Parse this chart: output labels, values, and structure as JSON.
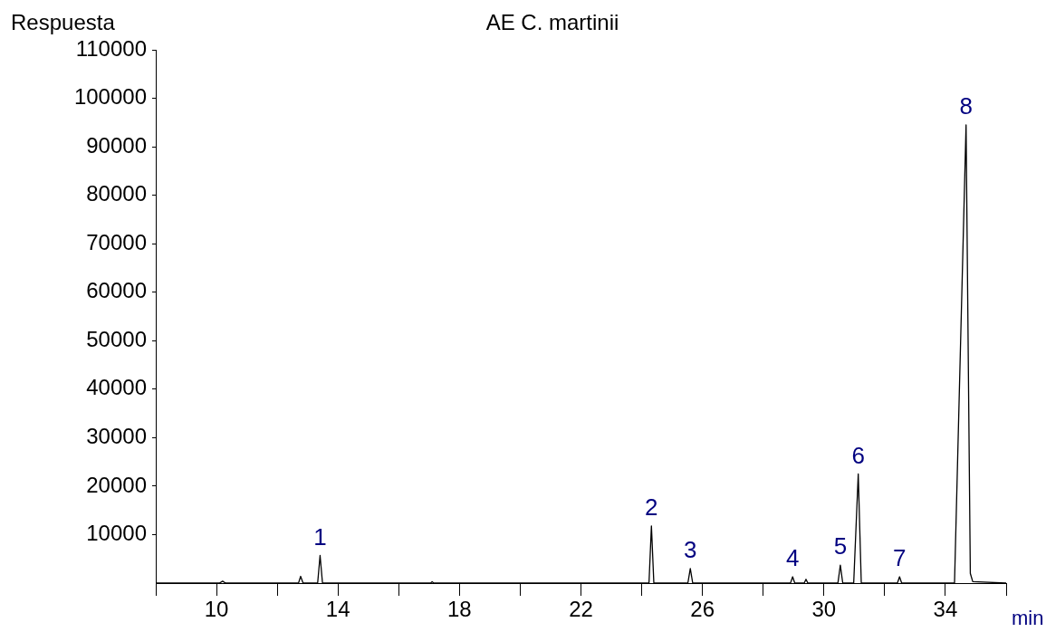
{
  "chart_data": {
    "type": "line",
    "title": "AE C. martinii",
    "ylabel": "Respuesta",
    "xlabel": "min",
    "xlim": [
      8,
      36
    ],
    "ylim": [
      0,
      110000
    ],
    "xticks": [
      {
        "value": 8,
        "label": null
      },
      10,
      {
        "value": 12,
        "label": null
      },
      14,
      {
        "value": 16,
        "label": null
      },
      18,
      {
        "value": 20,
        "label": null
      },
      22,
      {
        "value": 24,
        "label": null
      },
      26,
      {
        "value": 28,
        "label": null
      },
      30,
      {
        "value": 32,
        "label": null
      },
      34,
      {
        "value": 36,
        "label": null
      }
    ],
    "yticks": [
      10000,
      20000,
      30000,
      40000,
      50000,
      60000,
      70000,
      80000,
      90000,
      100000,
      110000
    ],
    "grid": false,
    "legend": false,
    "marker": "none",
    "line_style": "solid",
    "series": [
      {
        "color": "#000000",
        "x": [
          8,
          10.1,
          10.2,
          10.3,
          12.7,
          12.77,
          12.85,
          13.33,
          13.41,
          13.49,
          17.05,
          17.1,
          17.15,
          24.24,
          24.32,
          24.4,
          25.52,
          25.6,
          25.68,
          28.9,
          28.97,
          29.04,
          29.35,
          29.41,
          29.47,
          30.46,
          30.54,
          30.62,
          30.98,
          31.13,
          31.23,
          32.42,
          32.49,
          32.56,
          34.3,
          34.68,
          34.82,
          34.9,
          36
        ],
        "values": [
          0,
          0,
          400,
          0,
          0,
          1400,
          0,
          0,
          5700,
          0,
          0,
          300,
          0,
          0,
          11800,
          0,
          0,
          3000,
          0,
          0,
          1300,
          0,
          0,
          800,
          0,
          0,
          3700,
          0,
          0,
          22500,
          0,
          0,
          1300,
          0,
          0,
          94500,
          2000,
          300,
          0
        ]
      }
    ],
    "annotations": [
      {
        "text": "1",
        "x": 13.41,
        "y": 5700
      },
      {
        "text": "2",
        "x": 24.32,
        "y": 11800
      },
      {
        "text": "3",
        "x": 25.6,
        "y": 3000
      },
      {
        "text": "4",
        "x": 28.97,
        "y": 1300
      },
      {
        "text": "5",
        "x": 30.54,
        "y": 3700
      },
      {
        "text": "6",
        "x": 31.13,
        "y": 22500
      },
      {
        "text": "7",
        "x": 32.49,
        "y": 1300
      },
      {
        "text": "8",
        "x": 34.68,
        "y": 94500
      }
    ]
  }
}
